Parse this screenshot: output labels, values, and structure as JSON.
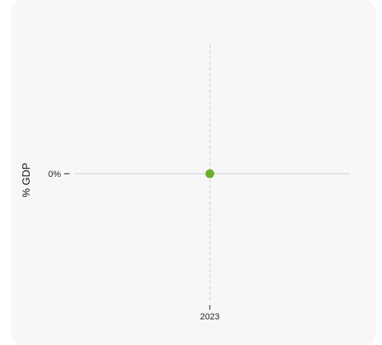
{
  "chart_data": {
    "type": "scatter",
    "title": "",
    "xlabel": "",
    "ylabel": "% GDP",
    "x": [
      2023
    ],
    "series": [
      {
        "values": [
          0
        ],
        "color": "#6ab02a"
      }
    ],
    "x_tick_labels": [
      "2023"
    ],
    "y_tick_labels": [
      "0%"
    ],
    "zero_line": true,
    "crosshair": "vertical-dashed",
    "grid": false,
    "legend": "none"
  }
}
